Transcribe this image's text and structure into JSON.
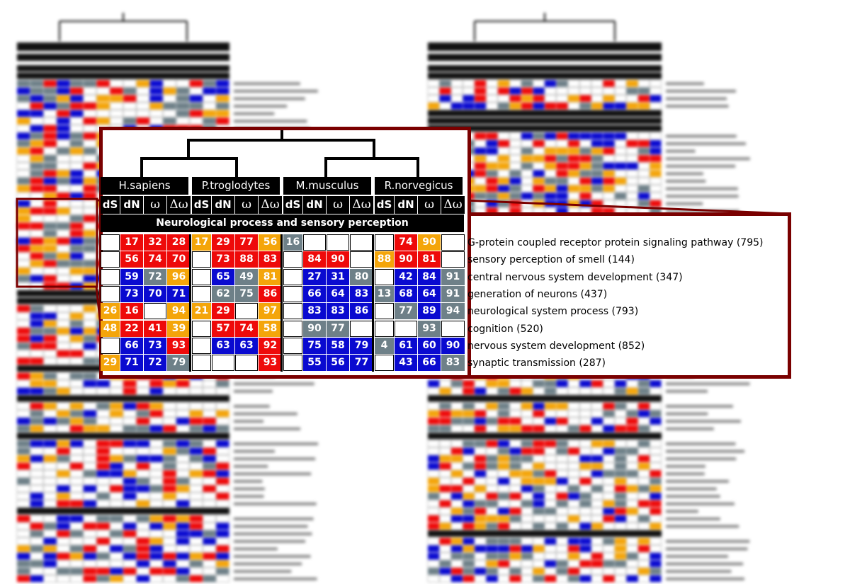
{
  "colors": {
    "red": "#ee0a0a",
    "blue": "#0a0ad0",
    "orange": "#f4a50a",
    "gray": "#6e8088",
    "frame": "#7a0000"
  },
  "species": [
    "H.sapiens",
    "P.troglodytes",
    "M.musculus",
    "R.norvegicus"
  ],
  "columns": [
    "dS",
    "dN",
    "ω",
    "Δω"
  ],
  "category": "Neurological process and sensory perception",
  "rows": [
    {
      "term": "G-protein coupled receptor protein signaling pathway (795)",
      "cells": [
        [
          null,
          {
            "v": "17",
            "c": "red"
          },
          {
            "v": "32",
            "c": "red"
          },
          {
            "v": "28",
            "c": "red"
          }
        ],
        [
          {
            "v": "17",
            "c": "orange"
          },
          {
            "v": "29",
            "c": "red"
          },
          {
            "v": "77",
            "c": "red"
          },
          {
            "v": "56",
            "c": "orange"
          }
        ],
        [
          {
            "v": "16",
            "c": "gray"
          },
          null,
          null,
          null
        ],
        [
          null,
          {
            "v": "74",
            "c": "red"
          },
          {
            "v": "90",
            "c": "orange"
          },
          null
        ]
      ]
    },
    {
      "term": "sensory perception of smell (144)",
      "cells": [
        [
          null,
          {
            "v": "56",
            "c": "red"
          },
          {
            "v": "74",
            "c": "red"
          },
          {
            "v": "70",
            "c": "red"
          }
        ],
        [
          null,
          {
            "v": "73",
            "c": "red"
          },
          {
            "v": "88",
            "c": "red"
          },
          {
            "v": "83",
            "c": "red"
          }
        ],
        [
          null,
          {
            "v": "84",
            "c": "red"
          },
          {
            "v": "90",
            "c": "red"
          },
          null
        ],
        [
          {
            "v": "88",
            "c": "orange"
          },
          {
            "v": "90",
            "c": "red"
          },
          {
            "v": "81",
            "c": "red"
          },
          null
        ]
      ]
    },
    {
      "term": "central nervous system development (347)",
      "cells": [
        [
          null,
          {
            "v": "59",
            "c": "blue"
          },
          {
            "v": "72",
            "c": "gray"
          },
          {
            "v": "96",
            "c": "orange"
          }
        ],
        [
          null,
          {
            "v": "65",
            "c": "blue"
          },
          {
            "v": "49",
            "c": "gray"
          },
          {
            "v": "81",
            "c": "orange"
          }
        ],
        [
          null,
          {
            "v": "27",
            "c": "blue"
          },
          {
            "v": "31",
            "c": "blue"
          },
          {
            "v": "80",
            "c": "gray"
          }
        ],
        [
          null,
          {
            "v": "42",
            "c": "blue"
          },
          {
            "v": "84",
            "c": "blue"
          },
          {
            "v": "91",
            "c": "gray"
          }
        ]
      ]
    },
    {
      "term": "generation of neurons (437)",
      "cells": [
        [
          null,
          {
            "v": "73",
            "c": "blue"
          },
          {
            "v": "70",
            "c": "blue"
          },
          {
            "v": "71",
            "c": "blue"
          }
        ],
        [
          null,
          {
            "v": "62",
            "c": "gray"
          },
          {
            "v": "75",
            "c": "gray"
          },
          {
            "v": "86",
            "c": "red"
          }
        ],
        [
          null,
          {
            "v": "66",
            "c": "blue"
          },
          {
            "v": "64",
            "c": "blue"
          },
          {
            "v": "83",
            "c": "blue"
          }
        ],
        [
          {
            "v": "13",
            "c": "gray"
          },
          {
            "v": "68",
            "c": "blue"
          },
          {
            "v": "64",
            "c": "blue"
          },
          {
            "v": "91",
            "c": "gray"
          }
        ]
      ]
    },
    {
      "term": "neurological system process (793)",
      "cells": [
        [
          {
            "v": "26",
            "c": "orange"
          },
          {
            "v": "16",
            "c": "red"
          },
          null,
          {
            "v": "94",
            "c": "orange"
          }
        ],
        [
          {
            "v": "21",
            "c": "orange"
          },
          {
            "v": "29",
            "c": "red"
          },
          null,
          {
            "v": "97",
            "c": "orange"
          }
        ],
        [
          null,
          {
            "v": "83",
            "c": "blue"
          },
          {
            "v": "83",
            "c": "blue"
          },
          {
            "v": "86",
            "c": "blue"
          }
        ],
        [
          null,
          {
            "v": "77",
            "c": "gray"
          },
          {
            "v": "89",
            "c": "blue"
          },
          {
            "v": "94",
            "c": "gray"
          }
        ]
      ]
    },
    {
      "term": "cognition (520)",
      "cells": [
        [
          {
            "v": "48",
            "c": "orange"
          },
          {
            "v": "22",
            "c": "red"
          },
          {
            "v": "41",
            "c": "red"
          },
          {
            "v": "39",
            "c": "orange"
          }
        ],
        [
          null,
          {
            "v": "57",
            "c": "red"
          },
          {
            "v": "74",
            "c": "red"
          },
          {
            "v": "58",
            "c": "orange"
          }
        ],
        [
          null,
          {
            "v": "90",
            "c": "gray"
          },
          {
            "v": "77",
            "c": "gray"
          },
          null
        ],
        [
          null,
          null,
          {
            "v": "93",
            "c": "gray"
          },
          null
        ]
      ]
    },
    {
      "term": "nervous system development (852)",
      "cells": [
        [
          null,
          {
            "v": "66",
            "c": "blue"
          },
          {
            "v": "73",
            "c": "blue"
          },
          {
            "v": "93",
            "c": "red"
          }
        ],
        [
          null,
          {
            "v": "63",
            "c": "blue"
          },
          {
            "v": "63",
            "c": "blue"
          },
          {
            "v": "92",
            "c": "red"
          }
        ],
        [
          null,
          {
            "v": "75",
            "c": "blue"
          },
          {
            "v": "58",
            "c": "blue"
          },
          {
            "v": "79",
            "c": "blue"
          }
        ],
        [
          {
            "v": "4",
            "c": "gray"
          },
          {
            "v": "61",
            "c": "blue"
          },
          {
            "v": "60",
            "c": "blue"
          },
          {
            "v": "90",
            "c": "blue"
          }
        ]
      ]
    },
    {
      "term": "synaptic transmission (287)",
      "cells": [
        [
          {
            "v": "29",
            "c": "orange"
          },
          {
            "v": "71",
            "c": "blue"
          },
          {
            "v": "72",
            "c": "blue"
          },
          {
            "v": "79",
            "c": "gray"
          }
        ],
        [
          null,
          null,
          null,
          {
            "v": "93",
            "c": "red"
          }
        ],
        [
          null,
          {
            "v": "55",
            "c": "blue"
          },
          {
            "v": "56",
            "c": "blue"
          },
          {
            "v": "77",
            "c": "blue"
          }
        ],
        [
          null,
          {
            "v": "43",
            "c": "blue"
          },
          {
            "v": "66",
            "c": "blue"
          },
          {
            "v": "83",
            "c": "gray"
          }
        ]
      ]
    }
  ]
}
